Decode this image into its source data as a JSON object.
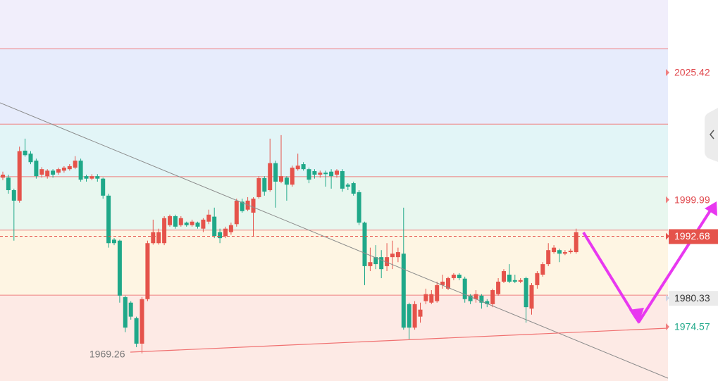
{
  "chart_data": {
    "type": "candlestick",
    "ylim": [
      1963.73,
      2039.93
    ],
    "up_color": "#e5534b",
    "down_color": "#1fa889",
    "levels": [
      2030.2,
      2015.1,
      2004.6,
      1993.9,
      1980.9
    ],
    "level_color": "#f08080",
    "bands": [
      "#f1eefb",
      "#e7ecfc",
      "#e2f5f7",
      "#e8f7ef",
      "#fef5e3",
      "#fdeae5"
    ],
    "ohlc": [
      [
        2004.4,
        2005.6,
        2003.9,
        2005.0
      ],
      [
        2004.4,
        2005.0,
        2001.2,
        2001.9
      ],
      [
        2001.9,
        2002.2,
        1991.8,
        1999.8
      ],
      [
        1999.8,
        2010.6,
        1999.4,
        2009.7
      ],
      [
        2009.8,
        2012.2,
        2008.6,
        2008.9
      ],
      [
        2009.2,
        2009.7,
        2007.1,
        2007.5
      ],
      [
        2007.8,
        2008.2,
        2004.2,
        2004.7
      ],
      [
        2005.0,
        2006.5,
        2004.4,
        2006.1
      ],
      [
        2004.7,
        2006.1,
        2004.2,
        2005.8
      ],
      [
        2005.8,
        2006.1,
        2004.4,
        2005.0
      ],
      [
        2005.4,
        2006.4,
        2005.0,
        2006.1
      ],
      [
        2005.8,
        2006.7,
        2005.4,
        2006.4
      ],
      [
        2006.1,
        2007.1,
        2005.8,
        2006.7
      ],
      [
        2006.4,
        2008.7,
        2006.1,
        2007.8
      ],
      [
        2007.8,
        2008.2,
        2003.6,
        2004.0
      ],
      [
        2004.7,
        2005.0,
        2003.6,
        2004.2
      ],
      [
        2004.2,
        2005.1,
        2003.9,
        2004.7
      ],
      [
        2004.7,
        2005.1,
        2003.6,
        2004.2
      ],
      [
        2004.2,
        2004.4,
        2000.2,
        2000.8
      ],
      [
        2000.8,
        2001.2,
        1990.4,
        1991.3
      ],
      [
        1992.0,
        1992.3,
        1990.9,
        1991.3
      ],
      [
        1991.8,
        1992.0,
        1979.4,
        1980.8
      ],
      [
        1980.5,
        1980.8,
        1973.5,
        1974.4
      ],
      [
        1979.4,
        1979.7,
        1976.0,
        1976.6
      ],
      [
        1976.3,
        1976.6,
        1970.5,
        1971.2
      ],
      [
        1971.2,
        1980.5,
        1969.26,
        1980.1
      ],
      [
        1980.1,
        1991.8,
        1979.7,
        1991.3
      ],
      [
        1991.3,
        1996.0,
        1991.0,
        1993.5
      ],
      [
        1991.3,
        1994.2,
        1991.0,
        1993.5
      ],
      [
        1991.3,
        1996.7,
        1990.9,
        1996.3
      ],
      [
        1994.9,
        1997.0,
        1994.6,
        1996.7
      ],
      [
        1996.7,
        1997.0,
        1994.2,
        1994.6
      ],
      [
        1994.9,
        1996.7,
        1994.6,
        1996.3
      ],
      [
        1995.4,
        1995.6,
        1994.6,
        1994.9
      ],
      [
        1994.9,
        1996.0,
        1994.6,
        1995.6
      ],
      [
        1995.4,
        1995.6,
        1994.2,
        1994.6
      ],
      [
        1994.2,
        1996.3,
        1993.5,
        1996.0
      ],
      [
        1995.6,
        1998.0,
        1995.1,
        1997.0
      ],
      [
        1996.6,
        1998.4,
        1992.3,
        1992.7
      ],
      [
        1993.5,
        1994.2,
        1991.3,
        1992.3
      ],
      [
        1992.7,
        1994.6,
        1992.3,
        1994.2
      ],
      [
        1993.5,
        1995.4,
        1993.0,
        1994.9
      ],
      [
        1995.1,
        2000.2,
        1994.6,
        1999.8
      ],
      [
        1999.6,
        2000.2,
        1997.4,
        1997.7
      ],
      [
        1998.0,
        2000.5,
        1997.7,
        1999.8
      ],
      [
        1997.4,
        2000.5,
        1992.7,
        2000.2
      ],
      [
        2000.5,
        2004.7,
        2000.2,
        2004.3
      ],
      [
        2004.3,
        2004.7,
        2000.8,
        2001.6
      ],
      [
        2001.9,
        2012.2,
        2001.6,
        2007.3
      ],
      [
        2007.3,
        2007.8,
        1998.4,
        2003.6
      ],
      [
        2003.6,
        2012.9,
        2003.3,
        2004.7
      ],
      [
        2004.4,
        2004.7,
        1999.8,
        2003.0
      ],
      [
        2003.0,
        2006.8,
        2002.6,
        2006.4
      ],
      [
        2006.1,
        2009.2,
        2005.8,
        2006.8
      ],
      [
        2007.1,
        2007.5,
        2005.8,
        2006.1
      ],
      [
        2006.1,
        2006.4,
        2003.3,
        2004.0
      ],
      [
        2005.7,
        2006.1,
        2004.2,
        2005.0
      ],
      [
        2005.0,
        2005.8,
        2004.4,
        2005.4
      ],
      [
        2005.4,
        2005.8,
        2002.6,
        2005.1
      ],
      [
        2005.6,
        2006.1,
        2002.2,
        2004.7
      ],
      [
        2005.0,
        2006.1,
        2004.4,
        2005.8
      ],
      [
        2005.7,
        2006.1,
        2001.6,
        2002.2
      ],
      [
        2003.0,
        2003.3,
        2001.9,
        2002.6
      ],
      [
        2003.3,
        2003.6,
        2000.8,
        2001.2
      ],
      [
        2001.5,
        2001.9,
        1994.9,
        1995.4
      ],
      [
        1995.4,
        1995.6,
        1982.9,
        1986.7
      ],
      [
        1986.7,
        1990.4,
        1985.7,
        1987.5
      ],
      [
        1988.5,
        1990.9,
        1986.1,
        1987.1
      ],
      [
        1988.5,
        1989.9,
        1984.3,
        1986.1
      ],
      [
        1986.7,
        1991.3,
        1985.7,
        1988.5
      ],
      [
        1988.5,
        1991.8,
        1986.1,
        1989.2
      ],
      [
        1988.5,
        1990.4,
        1987.5,
        1989.5
      ],
      [
        1989.2,
        1998.4,
        1974.0,
        1974.4
      ],
      [
        1979.1,
        1979.4,
        1972.1,
        1974.4
      ],
      [
        1974.4,
        1979.7,
        1974.0,
        1979.1
      ],
      [
        1976.6,
        1979.4,
        1975.4,
        1978.0
      ],
      [
        1979.7,
        1982.2,
        1979.1,
        1981.1
      ],
      [
        1979.4,
        1981.9,
        1979.1,
        1981.1
      ],
      [
        1979.7,
        1983.6,
        1979.4,
        1982.9
      ],
      [
        1982.9,
        1985.0,
        1982.2,
        1983.6
      ],
      [
        1982.2,
        1984.6,
        1981.9,
        1984.3
      ],
      [
        1984.3,
        1985.3,
        1983.9,
        1985.0
      ],
      [
        1985.0,
        1985.3,
        1983.9,
        1984.3
      ],
      [
        1984.2,
        1984.6,
        1979.4,
        1980.1
      ],
      [
        1980.8,
        1981.1,
        1979.1,
        1979.7
      ],
      [
        1980.1,
        1981.9,
        1979.4,
        1981.1
      ],
      [
        1980.8,
        1981.1,
        1978.2,
        1979.4
      ],
      [
        1979.7,
        1980.1,
        1978.5,
        1979.1
      ],
      [
        1979.1,
        1982.2,
        1978.5,
        1981.9
      ],
      [
        1981.1,
        1984.3,
        1980.8,
        1983.6
      ],
      [
        1983.6,
        1986.1,
        1983.3,
        1985.7
      ],
      [
        1985.0,
        1987.1,
        1983.3,
        1983.6
      ],
      [
        1983.9,
        1985.0,
        1983.3,
        1983.6
      ],
      [
        1983.6,
        1984.3,
        1983.3,
        1983.9
      ],
      [
        1984.3,
        1984.6,
        1975.4,
        1978.5
      ],
      [
        1978.2,
        1983.3,
        1977.0,
        1982.9
      ],
      [
        1982.9,
        1985.7,
        1982.2,
        1985.3
      ],
      [
        1985.0,
        1987.5,
        1984.6,
        1987.1
      ],
      [
        1987.1,
        1991.3,
        1986.7,
        1989.9
      ],
      [
        1989.5,
        1990.9,
        1989.2,
        1990.4
      ],
      [
        1989.9,
        1990.2,
        1987.5,
        1989.2
      ],
      [
        1989.2,
        1989.9,
        1988.9,
        1989.5
      ],
      [
        1989.5,
        1990.2,
        1989.2,
        1989.8
      ],
      [
        1989.5,
        1994.2,
        1989.2,
        1993.5
      ]
    ],
    "low_label": 1969.26,
    "price_labels": [
      {
        "value": 2025.42,
        "color": "#e0474c"
      },
      {
        "value": 1999.99,
        "color": "#e0474c"
      },
      {
        "value": 1992.68,
        "color": "#ffffff",
        "background": "#e5534b"
      },
      {
        "value": 1980.33,
        "color": "#333333",
        "background": "#ebebeb"
      },
      {
        "value": 1974.57,
        "color": "#1fa889"
      }
    ]
  }
}
